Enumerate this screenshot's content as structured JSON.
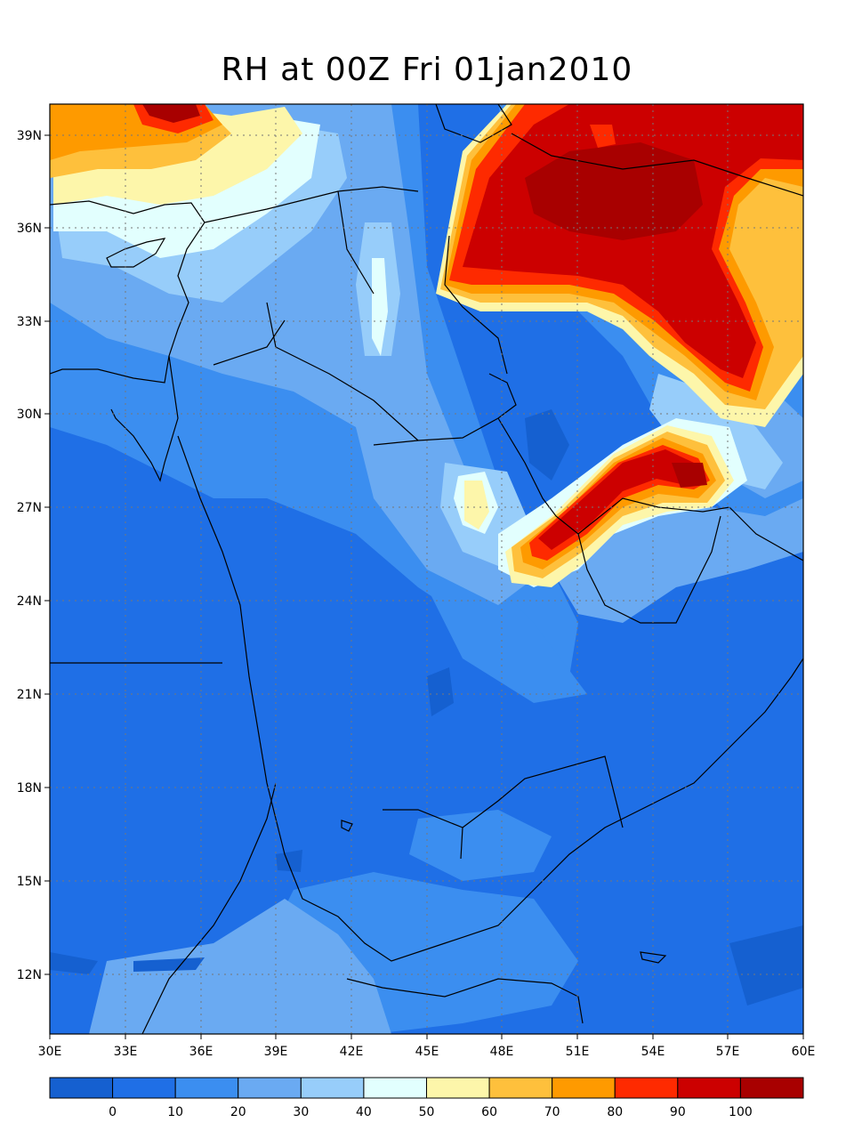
{
  "title": "RH at 00Z Fri 01jan2010",
  "map": {
    "lon_range": [
      30,
      60
    ],
    "lat_range": [
      10.2,
      40
    ],
    "lon_ticks": [
      "30E",
      "33E",
      "36E",
      "39E",
      "42E",
      "45E",
      "48E",
      "51E",
      "54E",
      "57E",
      "60E"
    ],
    "lat_ticks": [
      "12N",
      "15N",
      "18N",
      "21N",
      "24N",
      "27N",
      "30N",
      "33N",
      "36N",
      "39N"
    ],
    "gridlines": "dotted"
  },
  "colorbar": {
    "colors": [
      "#1560d0",
      "#1f6fe6",
      "#3b8ef0",
      "#6aaaf2",
      "#97cdfa",
      "#e2fffe",
      "#fdf6aa",
      "#fec03c",
      "#fe9a00",
      "#fe2a00",
      "#cc0000",
      "#a80000"
    ],
    "labels": [
      "0",
      "10",
      "20",
      "30",
      "40",
      "50",
      "60",
      "70",
      "80",
      "90",
      "100"
    ]
  }
}
